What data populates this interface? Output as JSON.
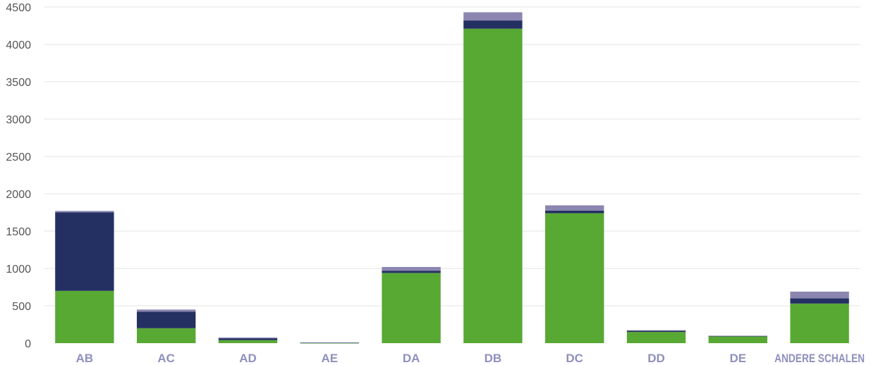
{
  "chart_data": {
    "type": "bar",
    "stacked": true,
    "categories": [
      "AB",
      "AC",
      "AD",
      "AE",
      "DA",
      "DB",
      "DC",
      "DD",
      "DE",
      "ANDERE SCHALEN"
    ],
    "series": [
      {
        "color": "#58a834",
        "values": [
          700,
          200,
          40,
          3,
          940,
          4210,
          1740,
          150,
          95,
          530
        ]
      },
      {
        "color": "#243062",
        "values": [
          1050,
          220,
          25,
          5,
          30,
          110,
          35,
          15,
          2,
          70
        ]
      },
      {
        "color": "#8b86b0",
        "values": [
          20,
          30,
          10,
          2,
          50,
          110,
          70,
          8,
          3,
          90
        ]
      }
    ],
    "ylim": [
      0,
      4500
    ],
    "yticks": [
      "0",
      "500",
      "1000",
      "1500",
      "2000",
      "2500",
      "3000",
      "3500",
      "4000",
      "4500"
    ],
    "grid": true
  }
}
